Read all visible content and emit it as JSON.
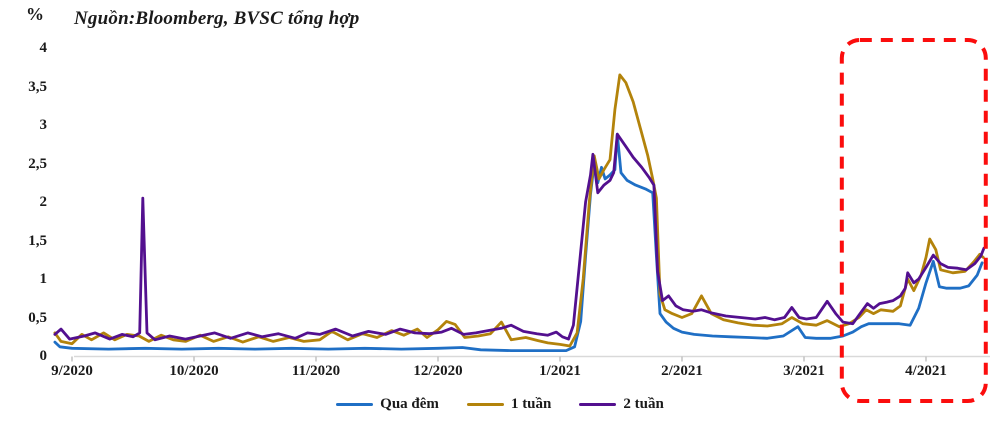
{
  "header": {
    "y_axis_unit": "%",
    "title": "Nguồn:Bloomberg, BVSC tổng hợp"
  },
  "chart_data": {
    "type": "line",
    "title": "Nguồn:Bloomberg, BVSC tổng hợp",
    "xlabel": "",
    "ylabel": "%",
    "ylim": [
      0,
      4
    ],
    "xlim": [
      -0.2,
      7.55
    ],
    "grid": false,
    "legend_position": "bottom",
    "axis_color": "#d9d9d9",
    "y_ticks": [
      "0",
      "0,5",
      "1",
      "1,5",
      "2",
      "2,5",
      "3",
      "3,5",
      "4"
    ],
    "y_tick_values": [
      0,
      0.5,
      1,
      1.5,
      2,
      2.5,
      3,
      3.5,
      4
    ],
    "x_ticks": [
      "9/2020",
      "10/2020",
      "11/2020",
      "12/2020",
      "1/2021",
      "2/2021",
      "3/2021",
      "4/2021"
    ],
    "x_tick_values": [
      0,
      1,
      2,
      3,
      4,
      5,
      6,
      7
    ],
    "annotations": [
      {
        "type": "dashed-rounded-rect",
        "color": "#fb0d0d",
        "x_from": 6.31,
        "x_to": 7.49,
        "note": "highlight of recent rate increase period"
      }
    ],
    "series": [
      {
        "name": "Qua đêm",
        "color": "#1f6fc5",
        "points": [
          [
            -0.14,
            0.18
          ],
          [
            -0.1,
            0.12
          ],
          [
            0.0,
            0.1
          ],
          [
            0.3,
            0.09
          ],
          [
            0.6,
            0.1
          ],
          [
            0.9,
            0.09
          ],
          [
            1.2,
            0.1
          ],
          [
            1.5,
            0.09
          ],
          [
            1.8,
            0.1
          ],
          [
            2.1,
            0.09
          ],
          [
            2.4,
            0.1
          ],
          [
            2.7,
            0.09
          ],
          [
            3.0,
            0.1
          ],
          [
            3.2,
            0.11
          ],
          [
            3.35,
            0.08
          ],
          [
            3.6,
            0.07
          ],
          [
            3.9,
            0.07
          ],
          [
            4.05,
            0.07
          ],
          [
            4.12,
            0.12
          ],
          [
            4.17,
            0.45
          ],
          [
            4.21,
            1.3
          ],
          [
            4.25,
            2.1
          ],
          [
            4.28,
            2.5
          ],
          [
            4.31,
            2.25
          ],
          [
            4.34,
            2.45
          ],
          [
            4.37,
            2.3
          ],
          [
            4.41,
            2.35
          ],
          [
            4.45,
            2.42
          ],
          [
            4.47,
            2.88
          ],
          [
            4.5,
            2.38
          ],
          [
            4.55,
            2.28
          ],
          [
            4.62,
            2.22
          ],
          [
            4.7,
            2.17
          ],
          [
            4.76,
            2.12
          ],
          [
            4.79,
            1.3
          ],
          [
            4.82,
            0.55
          ],
          [
            4.87,
            0.44
          ],
          [
            4.93,
            0.36
          ],
          [
            5.0,
            0.31
          ],
          [
            5.1,
            0.28
          ],
          [
            5.25,
            0.26
          ],
          [
            5.4,
            0.25
          ],
          [
            5.55,
            0.24
          ],
          [
            5.7,
            0.23
          ],
          [
            5.83,
            0.26
          ],
          [
            5.95,
            0.38
          ],
          [
            6.01,
            0.24
          ],
          [
            6.1,
            0.23
          ],
          [
            6.22,
            0.23
          ],
          [
            6.32,
            0.26
          ],
          [
            6.4,
            0.31
          ],
          [
            6.47,
            0.38
          ],
          [
            6.53,
            0.42
          ],
          [
            6.65,
            0.42
          ],
          [
            6.78,
            0.42
          ],
          [
            6.87,
            0.4
          ],
          [
            6.94,
            0.62
          ],
          [
            7.0,
            0.95
          ],
          [
            7.06,
            1.23
          ],
          [
            7.11,
            0.9
          ],
          [
            7.17,
            0.88
          ],
          [
            7.28,
            0.88
          ],
          [
            7.35,
            0.91
          ],
          [
            7.42,
            1.05
          ],
          [
            7.46,
            1.21
          ]
        ]
      },
      {
        "name": "1 tuần",
        "color": "#b3830b",
        "points": [
          [
            -0.14,
            0.3
          ],
          [
            -0.09,
            0.19
          ],
          [
            0.0,
            0.16
          ],
          [
            0.08,
            0.28
          ],
          [
            0.16,
            0.21
          ],
          [
            0.26,
            0.3
          ],
          [
            0.35,
            0.21
          ],
          [
            0.45,
            0.28
          ],
          [
            0.55,
            0.26
          ],
          [
            0.63,
            0.19
          ],
          [
            0.73,
            0.27
          ],
          [
            0.83,
            0.21
          ],
          [
            0.93,
            0.19
          ],
          [
            1.05,
            0.27
          ],
          [
            1.16,
            0.19
          ],
          [
            1.28,
            0.25
          ],
          [
            1.4,
            0.18
          ],
          [
            1.53,
            0.25
          ],
          [
            1.65,
            0.19
          ],
          [
            1.78,
            0.24
          ],
          [
            1.9,
            0.19
          ],
          [
            2.03,
            0.21
          ],
          [
            2.13,
            0.32
          ],
          [
            2.26,
            0.21
          ],
          [
            2.38,
            0.29
          ],
          [
            2.5,
            0.24
          ],
          [
            2.62,
            0.33
          ],
          [
            2.72,
            0.27
          ],
          [
            2.83,
            0.35
          ],
          [
            2.91,
            0.24
          ],
          [
            3.0,
            0.34
          ],
          [
            3.07,
            0.45
          ],
          [
            3.14,
            0.41
          ],
          [
            3.22,
            0.24
          ],
          [
            3.33,
            0.26
          ],
          [
            3.43,
            0.29
          ],
          [
            3.52,
            0.44
          ],
          [
            3.6,
            0.21
          ],
          [
            3.72,
            0.24
          ],
          [
            3.82,
            0.2
          ],
          [
            3.9,
            0.17
          ],
          [
            4.0,
            0.15
          ],
          [
            4.08,
            0.13
          ],
          [
            4.14,
            0.3
          ],
          [
            4.19,
            1.0
          ],
          [
            4.24,
            2.0
          ],
          [
            4.28,
            2.6
          ],
          [
            4.32,
            2.3
          ],
          [
            4.36,
            2.42
          ],
          [
            4.41,
            2.55
          ],
          [
            4.45,
            3.2
          ],
          [
            4.49,
            3.65
          ],
          [
            4.54,
            3.55
          ],
          [
            4.6,
            3.3
          ],
          [
            4.66,
            2.95
          ],
          [
            4.72,
            2.6
          ],
          [
            4.76,
            2.3
          ],
          [
            4.79,
            2.05
          ],
          [
            4.82,
            0.8
          ],
          [
            4.86,
            0.6
          ],
          [
            4.92,
            0.55
          ],
          [
            5.0,
            0.5
          ],
          [
            5.08,
            0.55
          ],
          [
            5.16,
            0.78
          ],
          [
            5.24,
            0.55
          ],
          [
            5.34,
            0.47
          ],
          [
            5.46,
            0.43
          ],
          [
            5.58,
            0.4
          ],
          [
            5.7,
            0.39
          ],
          [
            5.82,
            0.42
          ],
          [
            5.9,
            0.5
          ],
          [
            5.99,
            0.42
          ],
          [
            6.1,
            0.4
          ],
          [
            6.19,
            0.46
          ],
          [
            6.29,
            0.38
          ],
          [
            6.37,
            0.42
          ],
          [
            6.45,
            0.5
          ],
          [
            6.51,
            0.6
          ],
          [
            6.57,
            0.55
          ],
          [
            6.63,
            0.6
          ],
          [
            6.73,
            0.58
          ],
          [
            6.79,
            0.65
          ],
          [
            6.85,
            1.0
          ],
          [
            6.9,
            0.85
          ],
          [
            6.96,
            1.05
          ],
          [
            7.0,
            1.28
          ],
          [
            7.03,
            1.52
          ],
          [
            7.08,
            1.38
          ],
          [
            7.12,
            1.12
          ],
          [
            7.22,
            1.08
          ],
          [
            7.32,
            1.1
          ],
          [
            7.39,
            1.22
          ],
          [
            7.44,
            1.32
          ],
          [
            7.47,
            1.28
          ]
        ]
      },
      {
        "name": "2 tuần",
        "color": "#53108f",
        "points": [
          [
            -0.14,
            0.28
          ],
          [
            -0.09,
            0.35
          ],
          [
            -0.02,
            0.22
          ],
          [
            0.1,
            0.26
          ],
          [
            0.19,
            0.3
          ],
          [
            0.31,
            0.22
          ],
          [
            0.41,
            0.28
          ],
          [
            0.5,
            0.25
          ],
          [
            0.555,
            0.3
          ],
          [
            0.58,
            2.05
          ],
          [
            0.615,
            0.3
          ],
          [
            0.68,
            0.21
          ],
          [
            0.8,
            0.26
          ],
          [
            0.93,
            0.22
          ],
          [
            1.05,
            0.26
          ],
          [
            1.17,
            0.3
          ],
          [
            1.3,
            0.23
          ],
          [
            1.44,
            0.3
          ],
          [
            1.56,
            0.25
          ],
          [
            1.69,
            0.29
          ],
          [
            1.83,
            0.23
          ],
          [
            1.93,
            0.3
          ],
          [
            2.03,
            0.28
          ],
          [
            2.16,
            0.35
          ],
          [
            2.3,
            0.26
          ],
          [
            2.43,
            0.32
          ],
          [
            2.57,
            0.28
          ],
          [
            2.69,
            0.35
          ],
          [
            2.81,
            0.3
          ],
          [
            2.93,
            0.29
          ],
          [
            3.03,
            0.31
          ],
          [
            3.11,
            0.36
          ],
          [
            3.21,
            0.28
          ],
          [
            3.31,
            0.3
          ],
          [
            3.41,
            0.33
          ],
          [
            3.52,
            0.36
          ],
          [
            3.6,
            0.4
          ],
          [
            3.7,
            0.32
          ],
          [
            3.81,
            0.29
          ],
          [
            3.9,
            0.27
          ],
          [
            3.97,
            0.31
          ],
          [
            4.02,
            0.25
          ],
          [
            4.07,
            0.22
          ],
          [
            4.11,
            0.4
          ],
          [
            4.16,
            1.2
          ],
          [
            4.21,
            2.0
          ],
          [
            4.25,
            2.35
          ],
          [
            4.27,
            2.62
          ],
          [
            4.31,
            2.12
          ],
          [
            4.36,
            2.22
          ],
          [
            4.41,
            2.28
          ],
          [
            4.44,
            2.38
          ],
          [
            4.47,
            2.88
          ],
          [
            4.54,
            2.72
          ],
          [
            4.6,
            2.58
          ],
          [
            4.67,
            2.45
          ],
          [
            4.73,
            2.32
          ],
          [
            4.77,
            2.22
          ],
          [
            4.8,
            1.1
          ],
          [
            4.84,
            0.72
          ],
          [
            4.89,
            0.78
          ],
          [
            4.95,
            0.65
          ],
          [
            5.01,
            0.6
          ],
          [
            5.09,
            0.58
          ],
          [
            5.16,
            0.6
          ],
          [
            5.24,
            0.56
          ],
          [
            5.36,
            0.52
          ],
          [
            5.48,
            0.5
          ],
          [
            5.6,
            0.48
          ],
          [
            5.68,
            0.5
          ],
          [
            5.76,
            0.47
          ],
          [
            5.84,
            0.5
          ],
          [
            5.9,
            0.63
          ],
          [
            5.96,
            0.5
          ],
          [
            6.02,
            0.48
          ],
          [
            6.1,
            0.5
          ],
          [
            6.19,
            0.71
          ],
          [
            6.26,
            0.55
          ],
          [
            6.32,
            0.44
          ],
          [
            6.4,
            0.42
          ],
          [
            6.46,
            0.55
          ],
          [
            6.52,
            0.68
          ],
          [
            6.57,
            0.62
          ],
          [
            6.62,
            0.68
          ],
          [
            6.68,
            0.7
          ],
          [
            6.73,
            0.72
          ],
          [
            6.79,
            0.78
          ],
          [
            6.83,
            0.88
          ],
          [
            6.85,
            1.08
          ],
          [
            6.9,
            0.95
          ],
          [
            6.94,
            1.0
          ],
          [
            7.0,
            1.15
          ],
          [
            7.06,
            1.31
          ],
          [
            7.12,
            1.2
          ],
          [
            7.18,
            1.15
          ],
          [
            7.26,
            1.14
          ],
          [
            7.33,
            1.12
          ],
          [
            7.4,
            1.2
          ],
          [
            7.45,
            1.3
          ],
          [
            7.475,
            1.4
          ]
        ]
      }
    ]
  },
  "legend": {
    "items": [
      {
        "label": "Qua đêm"
      },
      {
        "label": "1 tuần"
      },
      {
        "label": "2 tuần"
      }
    ]
  }
}
